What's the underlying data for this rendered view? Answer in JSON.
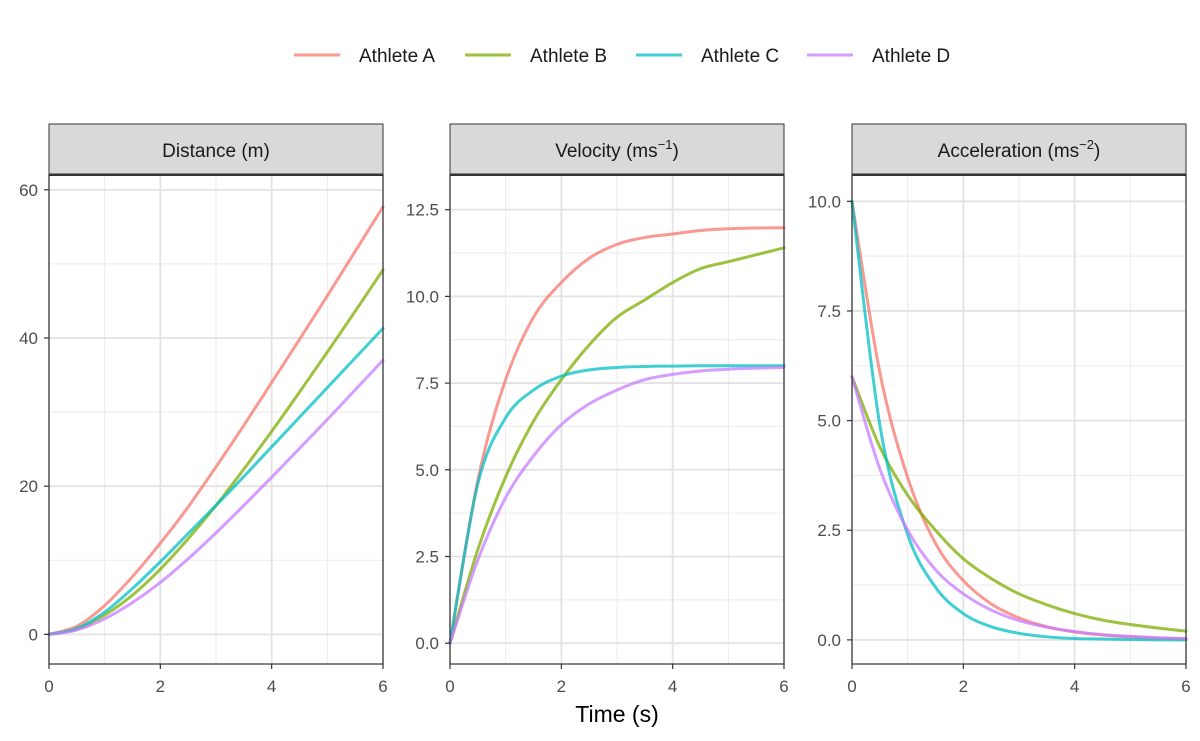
{
  "xlabel": "Time (s)",
  "legend": {
    "position": "top",
    "entries": [
      {
        "label": "Athlete A",
        "color": "#F8766D"
      },
      {
        "label": "Athlete B",
        "color": "#7CAE00"
      },
      {
        "label": "Athlete C",
        "color": "#00BFC4"
      },
      {
        "label": "Athlete D",
        "color": "#C77CFF"
      }
    ]
  },
  "chart_data": [
    {
      "type": "line",
      "facet": "Distance",
      "title": {
        "base": "Distance (m)",
        "sup": ""
      },
      "xlabel": "Time (s)",
      "xlim": [
        0,
        6
      ],
      "ylim": [
        -4,
        62
      ],
      "xticks": [
        0,
        2,
        4,
        6
      ],
      "yticks": [
        0,
        20,
        40,
        60
      ],
      "grid": true,
      "x": [
        0,
        0.5,
        1,
        1.5,
        2,
        2.5,
        3,
        3.5,
        4,
        4.5,
        5,
        5.5,
        6
      ],
      "series": [
        {
          "name": "Athlete A",
          "values": [
            0,
            1.1,
            3.9,
            7.8,
            12.3,
            17.2,
            22.6,
            28.2,
            34.0,
            39.8,
            45.7,
            51.7,
            57.7
          ]
        },
        {
          "name": "Athlete B",
          "values": [
            0,
            0.7,
            2.6,
            5.3,
            8.8,
            12.9,
            17.4,
            22.3,
            27.4,
            32.7,
            38.1,
            43.6,
            49.2
          ]
        },
        {
          "name": "Athlete C",
          "values": [
            0,
            0.8,
            3.0,
            6.2,
            9.8,
            13.6,
            17.4,
            21.3,
            25.3,
            29.3,
            33.3,
            37.3,
            41.3
          ]
        },
        {
          "name": "Athlete D",
          "values": [
            0,
            0.6,
            2.1,
            4.3,
            7.0,
            10.2,
            13.7,
            17.4,
            21.2,
            25.1,
            29.0,
            33.0,
            37.0
          ]
        }
      ]
    },
    {
      "type": "line",
      "facet": "Velocity",
      "title": {
        "base": "Velocity (ms",
        "sup": "−1",
        "close": ")"
      },
      "xlabel": "Time (s)",
      "xlim": [
        0,
        6
      ],
      "ylim": [
        -0.6,
        13.5
      ],
      "xticks": [
        0,
        2,
        4,
        6
      ],
      "yticks": [
        0.0,
        2.5,
        5.0,
        7.5,
        10.0,
        12.5
      ],
      "yticklabels": [
        "0.0",
        "2.5",
        "5.0",
        "7.5",
        "10.0",
        "12.5"
      ],
      "grid": true,
      "x": [
        0,
        0.5,
        1,
        1.5,
        2,
        2.5,
        3,
        3.5,
        4,
        4.5,
        5,
        5.5,
        6
      ],
      "series": [
        {
          "name": "Athlete A",
          "values": [
            0,
            4.7,
            7.6,
            9.4,
            10.4,
            11.1,
            11.5,
            11.7,
            11.8,
            11.9,
            11.95,
            11.97,
            11.98
          ]
        },
        {
          "name": "Athlete B",
          "values": [
            0,
            2.7,
            4.8,
            6.4,
            7.6,
            8.6,
            9.4,
            9.9,
            10.4,
            10.8,
            11.0,
            11.2,
            11.4
          ]
        },
        {
          "name": "Athlete C",
          "values": [
            0,
            4.6,
            6.5,
            7.3,
            7.7,
            7.88,
            7.95,
            7.98,
            7.99,
            8.0,
            8.0,
            8.0,
            8.0
          ]
        },
        {
          "name": "Athlete D",
          "values": [
            0,
            2.4,
            4.2,
            5.4,
            6.3,
            6.9,
            7.3,
            7.6,
            7.75,
            7.85,
            7.9,
            7.93,
            7.95
          ]
        }
      ]
    },
    {
      "type": "line",
      "facet": "Acceleration",
      "title": {
        "base": "Acceleration (ms",
        "sup": "−2",
        "close": ")"
      },
      "xlabel": "Time (s)",
      "xlim": [
        0,
        6
      ],
      "ylim": [
        -0.55,
        10.6
      ],
      "xticks": [
        0,
        2,
        4,
        6
      ],
      "yticks": [
        0.0,
        2.5,
        5.0,
        7.5,
        10.0
      ],
      "yticklabels": [
        "0.0",
        "2.5",
        "5.0",
        "7.5",
        "10.0"
      ],
      "grid": true,
      "x": [
        0,
        0.5,
        1,
        1.5,
        2,
        2.5,
        3,
        3.5,
        4,
        4.5,
        5,
        5.5,
        6
      ],
      "series": [
        {
          "name": "Athlete A",
          "values": [
            10.0,
            6.1,
            3.7,
            2.2,
            1.35,
            0.82,
            0.5,
            0.3,
            0.18,
            0.11,
            0.07,
            0.04,
            0.02
          ]
        },
        {
          "name": "Athlete B",
          "values": [
            6.0,
            4.4,
            3.3,
            2.5,
            1.85,
            1.4,
            1.05,
            0.8,
            0.6,
            0.45,
            0.35,
            0.27,
            0.2
          ]
        },
        {
          "name": "Athlete C",
          "values": [
            10.0,
            4.9,
            2.4,
            1.2,
            0.6,
            0.3,
            0.15,
            0.07,
            0.03,
            0.02,
            0.01,
            0.0,
            0.0
          ]
        },
        {
          "name": "Athlete D",
          "values": [
            6.0,
            3.9,
            2.5,
            1.6,
            1.05,
            0.68,
            0.44,
            0.29,
            0.19,
            0.12,
            0.08,
            0.05,
            0.03
          ]
        }
      ]
    }
  ]
}
